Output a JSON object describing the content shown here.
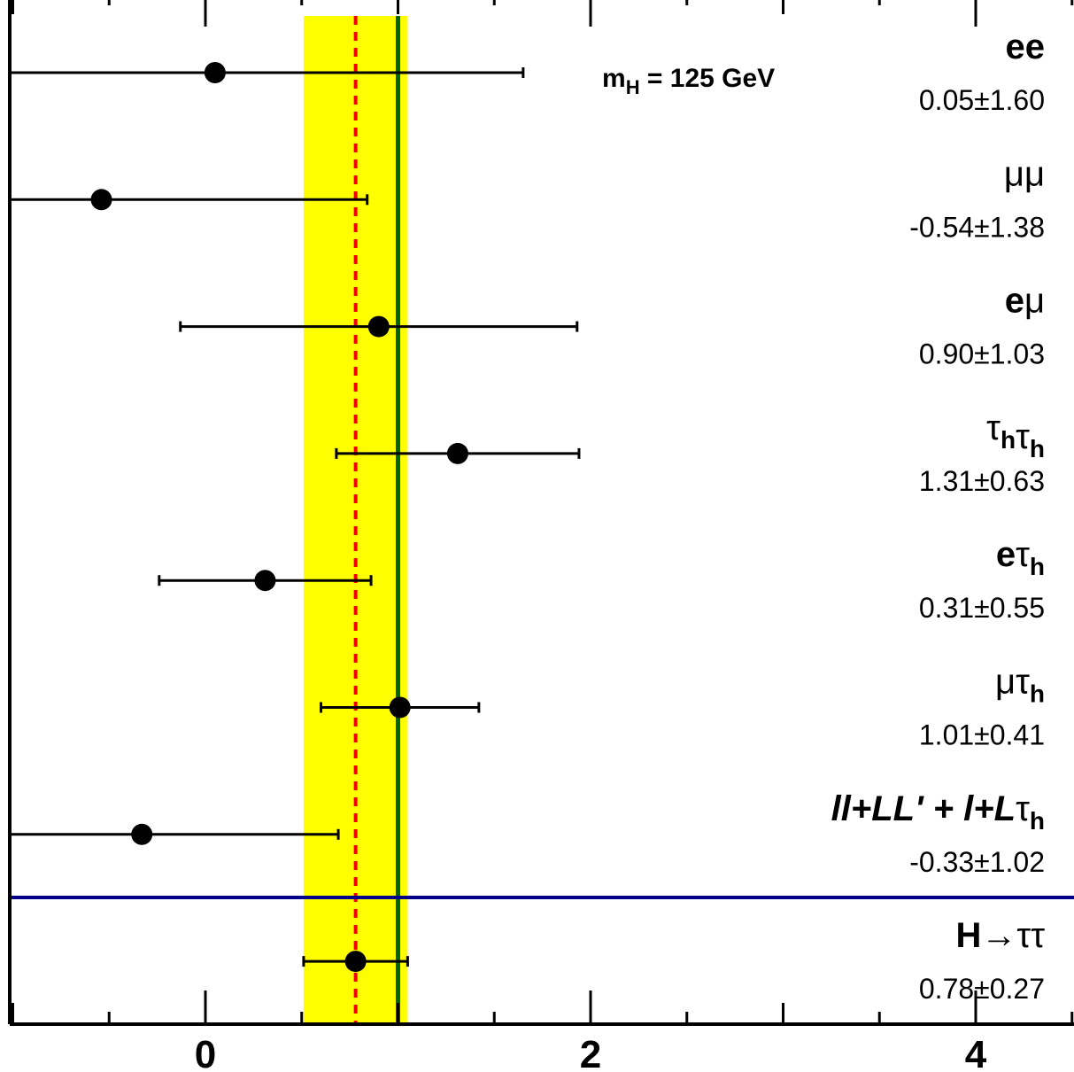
{
  "chart_data": {
    "type": "scatter",
    "title": "",
    "xlabel": "",
    "ylabel": "",
    "xlim": [
      -1.0,
      4.5
    ],
    "x_ticks": [
      0,
      2,
      4
    ],
    "x_tick_labels": [
      "0",
      "2",
      "4"
    ],
    "annotation": {
      "text": "m",
      "sub": "H",
      "rest": " = 125 GeV"
    },
    "categories": [
      {
        "label": "ee",
        "label_parts": [
          {
            "t": "ee",
            "b": true
          }
        ],
        "value": 0.05,
        "err": 1.6,
        "value_text": "0.05±1.60"
      },
      {
        "label": "μμ",
        "label_parts": [
          {
            "t": "μμ"
          }
        ],
        "value": -0.54,
        "err": 1.38,
        "value_text": "-0.54±1.38"
      },
      {
        "label": "eμ",
        "label_parts": [
          {
            "t": "e",
            "b": true
          },
          {
            "t": "μ"
          }
        ],
        "value": 0.9,
        "err": 1.03,
        "value_text": "0.90±1.03"
      },
      {
        "label": "τhτh",
        "label_parts": [
          {
            "t": "τ"
          },
          {
            "t": "h",
            "sub": true,
            "b": true
          },
          {
            "t": "τ"
          },
          {
            "t": "h",
            "sub": true,
            "b": true
          }
        ],
        "value": 1.31,
        "err": 0.63,
        "value_text": "1.31±0.63"
      },
      {
        "label": "eτh",
        "label_parts": [
          {
            "t": "e",
            "b": true
          },
          {
            "t": "τ"
          },
          {
            "t": "h",
            "sub": true,
            "b": true
          }
        ],
        "value": 0.31,
        "err": 0.55,
        "value_text": "0.31±0.55"
      },
      {
        "label": "μτh",
        "label_parts": [
          {
            "t": "μ"
          },
          {
            "t": "τ"
          },
          {
            "t": "h",
            "sub": true,
            "b": true
          }
        ],
        "value": 1.01,
        "err": 0.41,
        "value_text": "1.01±0.41"
      },
      {
        "label": "ll+LL' + l+Lτh",
        "label_parts": [
          {
            "t": "ll+LL' + l+L",
            "b": true,
            "i": true
          },
          {
            "t": "τ"
          },
          {
            "t": "h",
            "sub": true,
            "b": true
          }
        ],
        "value": -0.33,
        "err": 1.02,
        "value_text": "-0.33±1.02"
      },
      {
        "label": "H→ττ",
        "label_parts": [
          {
            "t": "H",
            "b": true
          },
          {
            "t": "→ττ"
          }
        ],
        "value": 0.78,
        "err": 0.27,
        "value_text": "0.78±0.27",
        "combined": true
      }
    ],
    "combined_band": {
      "center": 0.78,
      "low": 0.51,
      "high": 1.05
    },
    "reference_line": 1.0,
    "colors": {
      "band": "#ffff00",
      "combined_line": "#ee0000",
      "reference_line": "#006400",
      "separator": "#00008b",
      "points": "#000000"
    }
  }
}
